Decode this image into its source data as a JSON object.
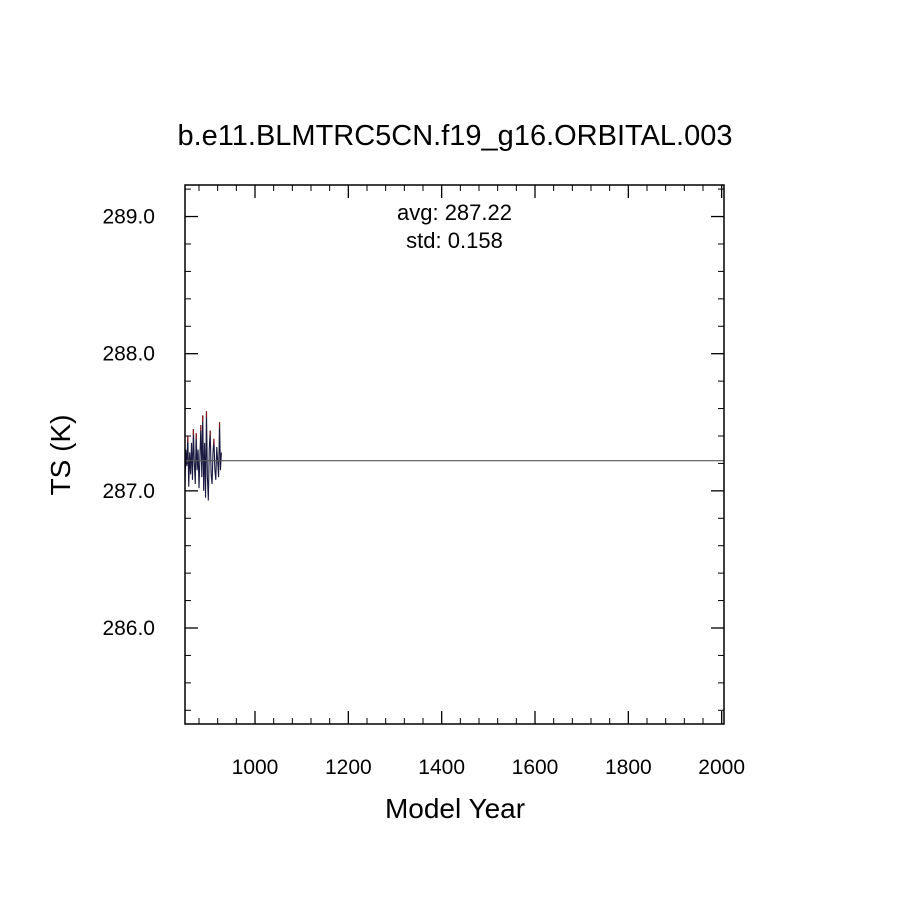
{
  "chart_data": {
    "type": "line",
    "title": "b.e11.BLMTRC5CN.f19_g16.ORBITAL.003",
    "xlabel": "Model Year",
    "ylabel": "TS (K)",
    "xlim": [
      850,
      2005
    ],
    "ylim": [
      285.3,
      289.23
    ],
    "x_ticks": [
      1000,
      1200,
      1400,
      1600,
      1800,
      2000
    ],
    "x_tick_labels": [
      "1000",
      "1200",
      "1400",
      "1600",
      "1800",
      "2000"
    ],
    "y_ticks": [
      286.0,
      287.0,
      288.0,
      289.0
    ],
    "y_tick_labels": [
      "286.0",
      "287.0",
      "288.0",
      "289.0"
    ],
    "annotations": {
      "avg": "avg: 287.22",
      "std": "std:  0.158"
    },
    "reference_line": {
      "y": 287.22,
      "color": "#555555"
    },
    "series": [
      {
        "color": "#1a1a40",
        "accent_color": "#8b1a1a",
        "x": [
          850,
          852,
          854,
          856,
          858,
          860,
          862,
          864,
          866,
          868,
          870,
          872,
          874,
          876,
          878,
          880,
          882,
          884,
          886,
          888,
          890,
          892,
          894,
          896,
          898,
          900,
          902,
          904,
          906,
          908,
          910,
          912,
          914,
          916,
          918,
          920,
          922,
          924,
          926,
          928
        ],
        "y": [
          287.05,
          287.3,
          287.18,
          287.4,
          287.03,
          287.28,
          287.12,
          287.35,
          287.08,
          287.45,
          287.2,
          287.05,
          287.42,
          287.15,
          287.3,
          287.02,
          287.25,
          287.48,
          287.1,
          287.55,
          287.0,
          287.35,
          286.95,
          287.58,
          287.1,
          286.93,
          287.3,
          287.44,
          287.12,
          287.05,
          287.28,
          287.38,
          287.15,
          287.08,
          287.32,
          287.22,
          287.1,
          287.5,
          287.15,
          287.28
        ]
      }
    ]
  }
}
